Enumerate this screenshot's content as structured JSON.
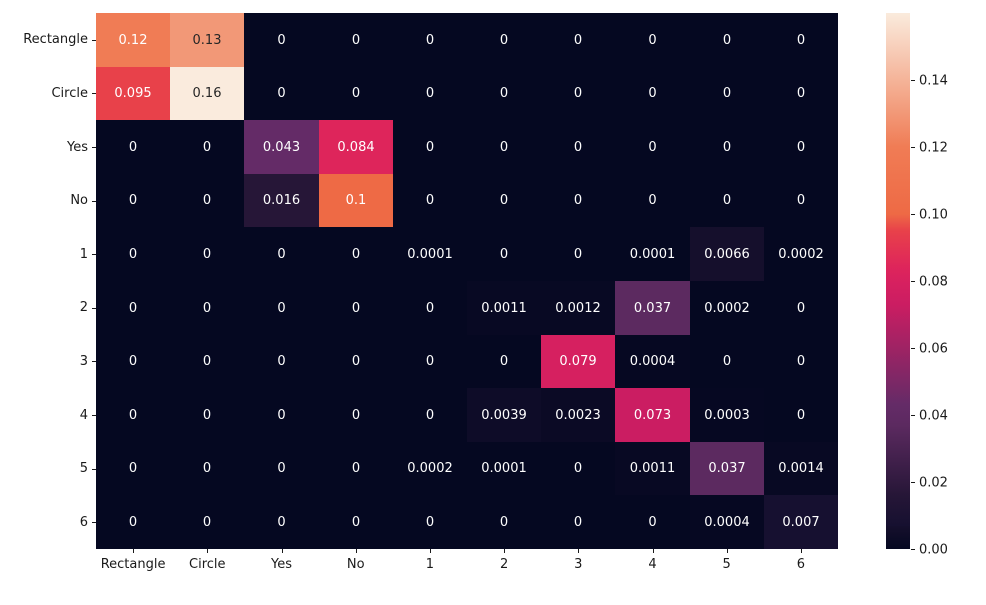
{
  "chart_data": {
    "type": "heatmap",
    "title": "",
    "xlabel": "",
    "ylabel": "",
    "x_labels": [
      "Rectangle",
      "Circle",
      "Yes",
      "No",
      "1",
      "2",
      "3",
      "4",
      "5",
      "6"
    ],
    "y_labels": [
      "Rectangle",
      "Circle",
      "Yes",
      "No",
      "1",
      "2",
      "3",
      "4",
      "5",
      "6"
    ],
    "values": [
      [
        0.12,
        0.13,
        0,
        0,
        0,
        0,
        0,
        0,
        0,
        0
      ],
      [
        0.095,
        0.16,
        0,
        0,
        0,
        0,
        0,
        0,
        0,
        0
      ],
      [
        0,
        0,
        0.043,
        0.084,
        0,
        0,
        0,
        0,
        0,
        0
      ],
      [
        0,
        0,
        0.016,
        0.1,
        0,
        0,
        0,
        0,
        0,
        0
      ],
      [
        0,
        0,
        0,
        0,
        0.0001,
        0,
        0,
        0.0001,
        0.0066,
        0.0002
      ],
      [
        0,
        0,
        0,
        0,
        0,
        0.0011,
        0.0012,
        0.037,
        0.0002,
        0
      ],
      [
        0,
        0,
        0,
        0,
        0,
        0,
        0.079,
        0.0004,
        0,
        0
      ],
      [
        0,
        0,
        0,
        0,
        0,
        0.0039,
        0.0023,
        0.073,
        0.0003,
        0
      ],
      [
        0,
        0,
        0,
        0,
        0.0002,
        0.0001,
        0,
        0.0011,
        0.037,
        0.0014
      ],
      [
        0,
        0,
        0,
        0,
        0,
        0,
        0,
        0,
        0.0004,
        0.007
      ]
    ],
    "annotations": [
      [
        "0.12",
        "0.13",
        "0",
        "0",
        "0",
        "0",
        "0",
        "0",
        "0",
        "0"
      ],
      [
        "0.095",
        "0.16",
        "0",
        "0",
        "0",
        "0",
        "0",
        "0",
        "0",
        "0"
      ],
      [
        "0",
        "0",
        "0.043",
        "0.084",
        "0",
        "0",
        "0",
        "0",
        "0",
        "0"
      ],
      [
        "0",
        "0",
        "0.016",
        "0.1",
        "0",
        "0",
        "0",
        "0",
        "0",
        "0"
      ],
      [
        "0",
        "0",
        "0",
        "0",
        "0.0001",
        "0",
        "0",
        "0.0001",
        "0.0066",
        "0.0002"
      ],
      [
        "0",
        "0",
        "0",
        "0",
        "0",
        "0.0011",
        "0.0012",
        "0.037",
        "0.0002",
        "0"
      ],
      [
        "0",
        "0",
        "0",
        "0",
        "0",
        "0",
        "0.079",
        "0.0004",
        "0",
        "0"
      ],
      [
        "0",
        "0",
        "0",
        "0",
        "0",
        "0.0039",
        "0.0023",
        "0.073",
        "0.0003",
        "0"
      ],
      [
        "0",
        "0",
        "0",
        "0",
        "0.0002",
        "0.0001",
        "0",
        "0.0011",
        "0.037",
        "0.0014"
      ],
      [
        "0",
        "0",
        "0",
        "0",
        "0",
        "0",
        "0",
        "0",
        "0.0004",
        "0.007"
      ]
    ],
    "vmin": 0,
    "vmax": 0.16,
    "colormap": "rocket",
    "colormap_stops": [
      [
        0.0,
        "#050821"
      ],
      [
        0.04125,
        "#150f2c"
      ],
      [
        0.04375,
        "#161030"
      ],
      [
        0.1,
        "#261637"
      ],
      [
        0.23125,
        "#5c2a60"
      ],
      [
        0.26875,
        "#642b67"
      ],
      [
        0.45625,
        "#cb1d62"
      ],
      [
        0.49375,
        "#d62060"
      ],
      [
        0.525,
        "#de255b"
      ],
      [
        0.59375,
        "#e8414a"
      ],
      [
        0.625,
        "#ee6a45"
      ],
      [
        0.75,
        "#f07c55"
      ],
      [
        0.8125,
        "#f29877"
      ],
      [
        1.0,
        "#faebdd"
      ]
    ],
    "annotation_text_light": "#ffffff",
    "annotation_text_dark": "#262626",
    "colorbar": {
      "position": "right",
      "tick_labels": [
        "0.00",
        "0.02",
        "0.04",
        "0.06",
        "0.08",
        "0.10",
        "0.12",
        "0.14"
      ],
      "tick_values": [
        0.0,
        0.02,
        0.04,
        0.06,
        0.08,
        0.1,
        0.12,
        0.14
      ]
    },
    "grid": false,
    "legend": false
  }
}
